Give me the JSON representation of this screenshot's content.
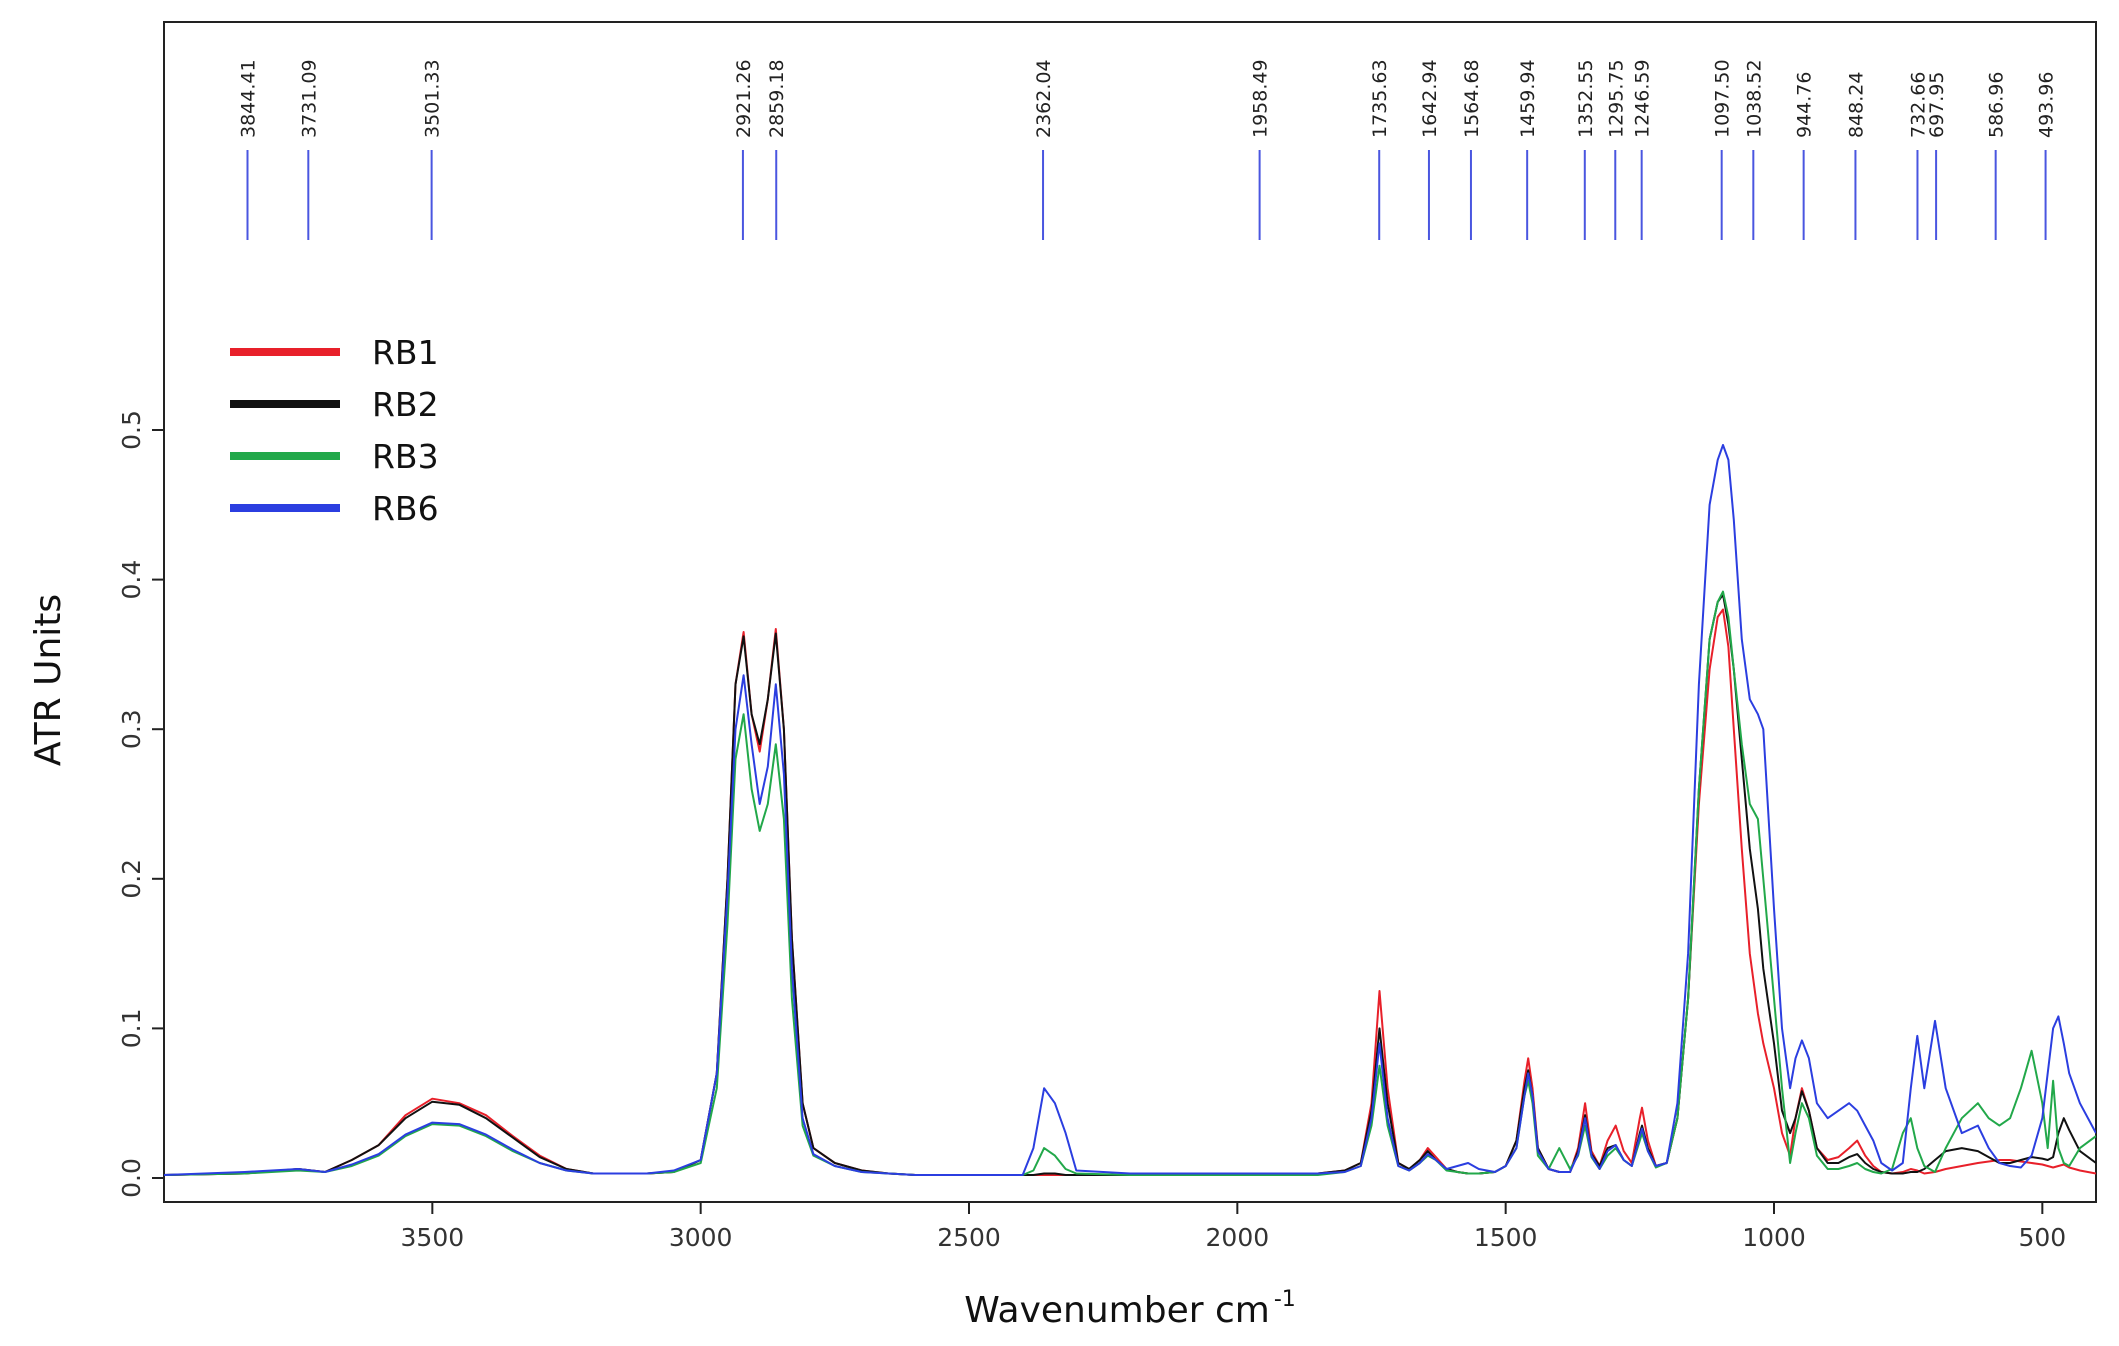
{
  "chart_data": {
    "type": "line",
    "ylabel": "ATR Units",
    "xlabel": "Wavenumber cm",
    "xlabel_superscript": "-1",
    "x_reversed": true,
    "xlim": [
      4000,
      400
    ],
    "ylim": [
      0,
      0.6
    ],
    "x_ticks": [
      3500,
      3000,
      2500,
      2000,
      1500,
      1000,
      500
    ],
    "x_tick_labels": [
      "3500",
      "3000",
      "2500",
      "2000",
      "1500",
      "1000",
      "500"
    ],
    "y_ticks": [
      0,
      0.1,
      0.2,
      0.3,
      0.4,
      0.5
    ],
    "y_tick_labels": [
      "0.0",
      "0.1",
      "0.2",
      "0.3",
      "0.4",
      "0.5"
    ],
    "grid": false,
    "legend_position": "top-left",
    "peak_markers": [
      {
        "wavenumber": 3844.41,
        "label": "3844.41"
      },
      {
        "wavenumber": 3731.09,
        "label": "3731.09"
      },
      {
        "wavenumber": 3501.33,
        "label": "3501.33"
      },
      {
        "wavenumber": 2921.26,
        "label": "2921.26"
      },
      {
        "wavenumber": 2859.18,
        "label": "2859.18"
      },
      {
        "wavenumber": 2362.04,
        "label": "2362.04"
      },
      {
        "wavenumber": 1958.49,
        "label": "1958.49"
      },
      {
        "wavenumber": 1735.63,
        "label": "1735.63"
      },
      {
        "wavenumber": 1642.94,
        "label": "1642.94"
      },
      {
        "wavenumber": 1564.68,
        "label": "1564.68"
      },
      {
        "wavenumber": 1459.94,
        "label": "1459.94"
      },
      {
        "wavenumber": 1352.55,
        "label": "1352.55"
      },
      {
        "wavenumber": 1295.75,
        "label": "1295.75"
      },
      {
        "wavenumber": 1246.59,
        "label": "1246.59"
      },
      {
        "wavenumber": 1097.5,
        "label": "1097.50"
      },
      {
        "wavenumber": 1038.52,
        "label": "1038.52"
      },
      {
        "wavenumber": 944.76,
        "label": "944.76"
      },
      {
        "wavenumber": 848.24,
        "label": "848.24"
      },
      {
        "wavenumber": 732.66,
        "label": "732.66"
      },
      {
        "wavenumber": 697.95,
        "label": "697.95"
      },
      {
        "wavenumber": 586.96,
        "label": "586.96"
      },
      {
        "wavenumber": 493.96,
        "label": "493.96"
      }
    ],
    "series": [
      {
        "name": "RB1",
        "color": "#e8202a",
        "x": [
          4000,
          3850,
          3750,
          3700,
          3650,
          3600,
          3550,
          3500,
          3450,
          3400,
          3350,
          3300,
          3250,
          3200,
          3100,
          3050,
          3000,
          2970,
          2950,
          2935,
          2920,
          2905,
          2890,
          2875,
          2860,
          2845,
          2830,
          2810,
          2790,
          2750,
          2700,
          2650,
          2600,
          2500,
          2400,
          2380,
          2360,
          2340,
          2320,
          2300,
          2200,
          2100,
          2000,
          1958,
          1900,
          1850,
          1800,
          1770,
          1750,
          1735,
          1720,
          1700,
          1680,
          1660,
          1645,
          1630,
          1610,
          1590,
          1570,
          1550,
          1520,
          1500,
          1480,
          1465,
          1458,
          1450,
          1440,
          1420,
          1400,
          1380,
          1365,
          1352,
          1340,
          1325,
          1310,
          1295,
          1280,
          1265,
          1250,
          1246,
          1235,
          1220,
          1200,
          1180,
          1160,
          1140,
          1120,
          1105,
          1095,
          1085,
          1075,
          1060,
          1045,
          1030,
          1020,
          1000,
          985,
          970,
          960,
          948,
          935,
          920,
          900,
          880,
          860,
          845,
          830,
          815,
          800,
          780,
          760,
          745,
          733,
          720,
          700,
          680,
          650,
          620,
          600,
          580,
          560,
          540,
          520,
          500,
          490,
          480,
          470,
          460,
          450,
          430,
          400
        ],
        "y": [
          0.002,
          0.003,
          0.006,
          0.004,
          0.012,
          0.022,
          0.042,
          0.053,
          0.05,
          0.042,
          0.028,
          0.015,
          0.006,
          0.003,
          0.003,
          0.004,
          0.012,
          0.07,
          0.2,
          0.33,
          0.365,
          0.31,
          0.285,
          0.32,
          0.367,
          0.3,
          0.16,
          0.05,
          0.02,
          0.01,
          0.005,
          0.003,
          0.002,
          0.002,
          0.002,
          0.002,
          0.002,
          0.002,
          0.002,
          0.002,
          0.002,
          0.002,
          0.003,
          0.003,
          0.003,
          0.003,
          0.005,
          0.01,
          0.05,
          0.125,
          0.06,
          0.01,
          0.006,
          0.012,
          0.02,
          0.014,
          0.006,
          0.004,
          0.003,
          0.003,
          0.004,
          0.008,
          0.025,
          0.065,
          0.08,
          0.06,
          0.02,
          0.006,
          0.004,
          0.004,
          0.02,
          0.05,
          0.018,
          0.008,
          0.025,
          0.035,
          0.018,
          0.01,
          0.04,
          0.047,
          0.025,
          0.008,
          0.01,
          0.04,
          0.12,
          0.25,
          0.34,
          0.375,
          0.38,
          0.355,
          0.3,
          0.22,
          0.15,
          0.11,
          0.09,
          0.06,
          0.03,
          0.015,
          0.04,
          0.06,
          0.045,
          0.02,
          0.012,
          0.014,
          0.02,
          0.025,
          0.015,
          0.008,
          0.004,
          0.003,
          0.004,
          0.006,
          0.005,
          0.003,
          0.004,
          0.006,
          0.008,
          0.01,
          0.011,
          0.012,
          0.012,
          0.011,
          0.01,
          0.009,
          0.008,
          0.007,
          0.008,
          0.009,
          0.007,
          0.005,
          0.003
        ]
      },
      {
        "name": "RB2",
        "color": "#111111",
        "x": [
          4000,
          3850,
          3750,
          3700,
          3650,
          3600,
          3550,
          3500,
          3450,
          3400,
          3350,
          3300,
          3250,
          3200,
          3100,
          3050,
          3000,
          2970,
          2950,
          2935,
          2920,
          2905,
          2890,
          2875,
          2860,
          2845,
          2830,
          2810,
          2790,
          2750,
          2700,
          2650,
          2600,
          2500,
          2400,
          2380,
          2360,
          2340,
          2320,
          2300,
          2200,
          2100,
          2000,
          1958,
          1900,
          1850,
          1800,
          1770,
          1750,
          1735,
          1720,
          1700,
          1680,
          1660,
          1645,
          1630,
          1610,
          1590,
          1570,
          1550,
          1520,
          1500,
          1480,
          1465,
          1458,
          1450,
          1440,
          1420,
          1400,
          1380,
          1365,
          1352,
          1340,
          1325,
          1310,
          1295,
          1280,
          1265,
          1250,
          1246,
          1235,
          1220,
          1200,
          1180,
          1160,
          1140,
          1120,
          1105,
          1095,
          1085,
          1075,
          1060,
          1045,
          1030,
          1020,
          1000,
          985,
          970,
          960,
          948,
          935,
          920,
          900,
          880,
          860,
          845,
          830,
          815,
          800,
          780,
          760,
          745,
          733,
          720,
          700,
          680,
          650,
          620,
          600,
          580,
          560,
          540,
          520,
          500,
          490,
          480,
          470,
          460,
          450,
          430,
          400
        ],
        "y": [
          0.002,
          0.003,
          0.006,
          0.004,
          0.012,
          0.022,
          0.04,
          0.051,
          0.049,
          0.04,
          0.027,
          0.014,
          0.006,
          0.003,
          0.003,
          0.004,
          0.012,
          0.07,
          0.2,
          0.33,
          0.362,
          0.31,
          0.29,
          0.32,
          0.364,
          0.3,
          0.16,
          0.05,
          0.02,
          0.01,
          0.005,
          0.003,
          0.002,
          0.002,
          0.002,
          0.002,
          0.003,
          0.003,
          0.002,
          0.002,
          0.002,
          0.002,
          0.003,
          0.003,
          0.003,
          0.003,
          0.005,
          0.01,
          0.045,
          0.1,
          0.05,
          0.01,
          0.006,
          0.012,
          0.018,
          0.012,
          0.006,
          0.004,
          0.003,
          0.003,
          0.004,
          0.008,
          0.025,
          0.06,
          0.072,
          0.055,
          0.02,
          0.006,
          0.004,
          0.004,
          0.018,
          0.042,
          0.016,
          0.008,
          0.02,
          0.022,
          0.012,
          0.008,
          0.03,
          0.035,
          0.02,
          0.008,
          0.01,
          0.04,
          0.12,
          0.26,
          0.36,
          0.385,
          0.39,
          0.37,
          0.34,
          0.28,
          0.22,
          0.18,
          0.14,
          0.09,
          0.045,
          0.03,
          0.04,
          0.058,
          0.045,
          0.02,
          0.01,
          0.01,
          0.014,
          0.016,
          0.01,
          0.006,
          0.004,
          0.003,
          0.003,
          0.004,
          0.004,
          0.006,
          0.012,
          0.018,
          0.02,
          0.018,
          0.014,
          0.01,
          0.01,
          0.012,
          0.014,
          0.013,
          0.012,
          0.014,
          0.03,
          0.04,
          0.032,
          0.018,
          0.01
        ]
      },
      {
        "name": "RB3",
        "color": "#22a84a",
        "x": [
          4000,
          3850,
          3750,
          3700,
          3650,
          3600,
          3550,
          3500,
          3450,
          3400,
          3350,
          3300,
          3250,
          3200,
          3100,
          3050,
          3000,
          2970,
          2950,
          2935,
          2920,
          2905,
          2890,
          2875,
          2860,
          2845,
          2830,
          2810,
          2790,
          2750,
          2700,
          2650,
          2600,
          2500,
          2400,
          2380,
          2360,
          2340,
          2320,
          2300,
          2200,
          2100,
          2000,
          1958,
          1900,
          1850,
          1800,
          1770,
          1750,
          1735,
          1720,
          1700,
          1680,
          1660,
          1645,
          1630,
          1610,
          1590,
          1570,
          1550,
          1520,
          1500,
          1480,
          1465,
          1458,
          1450,
          1440,
          1420,
          1400,
          1380,
          1365,
          1352,
          1340,
          1325,
          1310,
          1295,
          1280,
          1265,
          1250,
          1246,
          1235,
          1220,
          1200,
          1180,
          1160,
          1140,
          1120,
          1105,
          1095,
          1085,
          1075,
          1060,
          1045,
          1030,
          1020,
          1000,
          985,
          970,
          960,
          948,
          935,
          920,
          900,
          880,
          860,
          845,
          830,
          815,
          800,
          780,
          760,
          745,
          733,
          720,
          700,
          680,
          650,
          620,
          600,
          580,
          560,
          540,
          520,
          500,
          490,
          480,
          470,
          460,
          450,
          430,
          400
        ],
        "y": [
          0.002,
          0.003,
          0.005,
          0.004,
          0.008,
          0.015,
          0.028,
          0.036,
          0.035,
          0.028,
          0.018,
          0.01,
          0.005,
          0.003,
          0.003,
          0.004,
          0.01,
          0.06,
          0.17,
          0.28,
          0.31,
          0.26,
          0.232,
          0.25,
          0.29,
          0.24,
          0.12,
          0.035,
          0.015,
          0.008,
          0.004,
          0.003,
          0.002,
          0.002,
          0.002,
          0.005,
          0.02,
          0.015,
          0.006,
          0.003,
          0.002,
          0.002,
          0.002,
          0.002,
          0.002,
          0.002,
          0.004,
          0.008,
          0.035,
          0.075,
          0.035,
          0.008,
          0.005,
          0.01,
          0.015,
          0.012,
          0.005,
          0.004,
          0.003,
          0.003,
          0.004,
          0.008,
          0.02,
          0.055,
          0.065,
          0.05,
          0.015,
          0.006,
          0.02,
          0.006,
          0.015,
          0.035,
          0.014,
          0.006,
          0.015,
          0.02,
          0.012,
          0.008,
          0.025,
          0.03,
          0.018,
          0.007,
          0.01,
          0.04,
          0.12,
          0.26,
          0.36,
          0.385,
          0.392,
          0.375,
          0.34,
          0.29,
          0.25,
          0.24,
          0.2,
          0.12,
          0.06,
          0.01,
          0.03,
          0.05,
          0.04,
          0.015,
          0.006,
          0.006,
          0.008,
          0.01,
          0.006,
          0.004,
          0.003,
          0.006,
          0.03,
          0.04,
          0.02,
          0.008,
          0.004,
          0.02,
          0.04,
          0.05,
          0.04,
          0.035,
          0.04,
          0.06,
          0.085,
          0.05,
          0.02,
          0.065,
          0.02,
          0.01,
          0.008,
          0.02,
          0.028
        ]
      },
      {
        "name": "RB6",
        "color": "#2b3ee0",
        "x": [
          4000,
          3850,
          3750,
          3700,
          3650,
          3600,
          3550,
          3500,
          3450,
          3400,
          3350,
          3300,
          3250,
          3200,
          3100,
          3050,
          3000,
          2970,
          2950,
          2935,
          2920,
          2905,
          2890,
          2875,
          2860,
          2845,
          2830,
          2810,
          2790,
          2750,
          2700,
          2650,
          2600,
          2500,
          2400,
          2380,
          2360,
          2340,
          2320,
          2300,
          2200,
          2100,
          2000,
          1958,
          1900,
          1850,
          1800,
          1770,
          1750,
          1735,
          1720,
          1700,
          1680,
          1660,
          1645,
          1630,
          1610,
          1590,
          1570,
          1550,
          1520,
          1500,
          1480,
          1465,
          1458,
          1450,
          1440,
          1420,
          1400,
          1380,
          1365,
          1352,
          1340,
          1325,
          1310,
          1295,
          1280,
          1265,
          1250,
          1246,
          1235,
          1220,
          1200,
          1180,
          1160,
          1140,
          1120,
          1105,
          1095,
          1085,
          1075,
          1060,
          1045,
          1030,
          1020,
          1000,
          985,
          970,
          960,
          948,
          935,
          920,
          900,
          880,
          860,
          845,
          830,
          815,
          800,
          780,
          760,
          745,
          733,
          720,
          700,
          680,
          650,
          620,
          600,
          580,
          560,
          540,
          520,
          500,
          490,
          480,
          470,
          460,
          450,
          430,
          400
        ],
        "y": [
          0.002,
          0.004,
          0.006,
          0.004,
          0.009,
          0.016,
          0.029,
          0.037,
          0.036,
          0.029,
          0.019,
          0.01,
          0.005,
          0.003,
          0.003,
          0.005,
          0.012,
          0.07,
          0.19,
          0.3,
          0.336,
          0.29,
          0.25,
          0.275,
          0.33,
          0.27,
          0.14,
          0.04,
          0.016,
          0.008,
          0.004,
          0.003,
          0.002,
          0.002,
          0.002,
          0.02,
          0.06,
          0.05,
          0.03,
          0.005,
          0.003,
          0.003,
          0.003,
          0.003,
          0.003,
          0.003,
          0.004,
          0.008,
          0.04,
          0.09,
          0.04,
          0.008,
          0.005,
          0.01,
          0.016,
          0.012,
          0.006,
          0.008,
          0.01,
          0.006,
          0.004,
          0.008,
          0.02,
          0.055,
          0.07,
          0.055,
          0.018,
          0.006,
          0.004,
          0.004,
          0.016,
          0.04,
          0.015,
          0.006,
          0.018,
          0.022,
          0.012,
          0.008,
          0.028,
          0.033,
          0.018,
          0.008,
          0.01,
          0.05,
          0.15,
          0.33,
          0.45,
          0.48,
          0.49,
          0.48,
          0.44,
          0.36,
          0.32,
          0.31,
          0.3,
          0.18,
          0.1,
          0.06,
          0.08,
          0.092,
          0.08,
          0.05,
          0.04,
          0.045,
          0.05,
          0.045,
          0.035,
          0.025,
          0.01,
          0.005,
          0.01,
          0.06,
          0.095,
          0.06,
          0.105,
          0.06,
          0.03,
          0.035,
          0.02,
          0.01,
          0.008,
          0.007,
          0.015,
          0.04,
          0.07,
          0.1,
          0.108,
          0.09,
          0.07,
          0.05,
          0.03
        ]
      }
    ]
  }
}
